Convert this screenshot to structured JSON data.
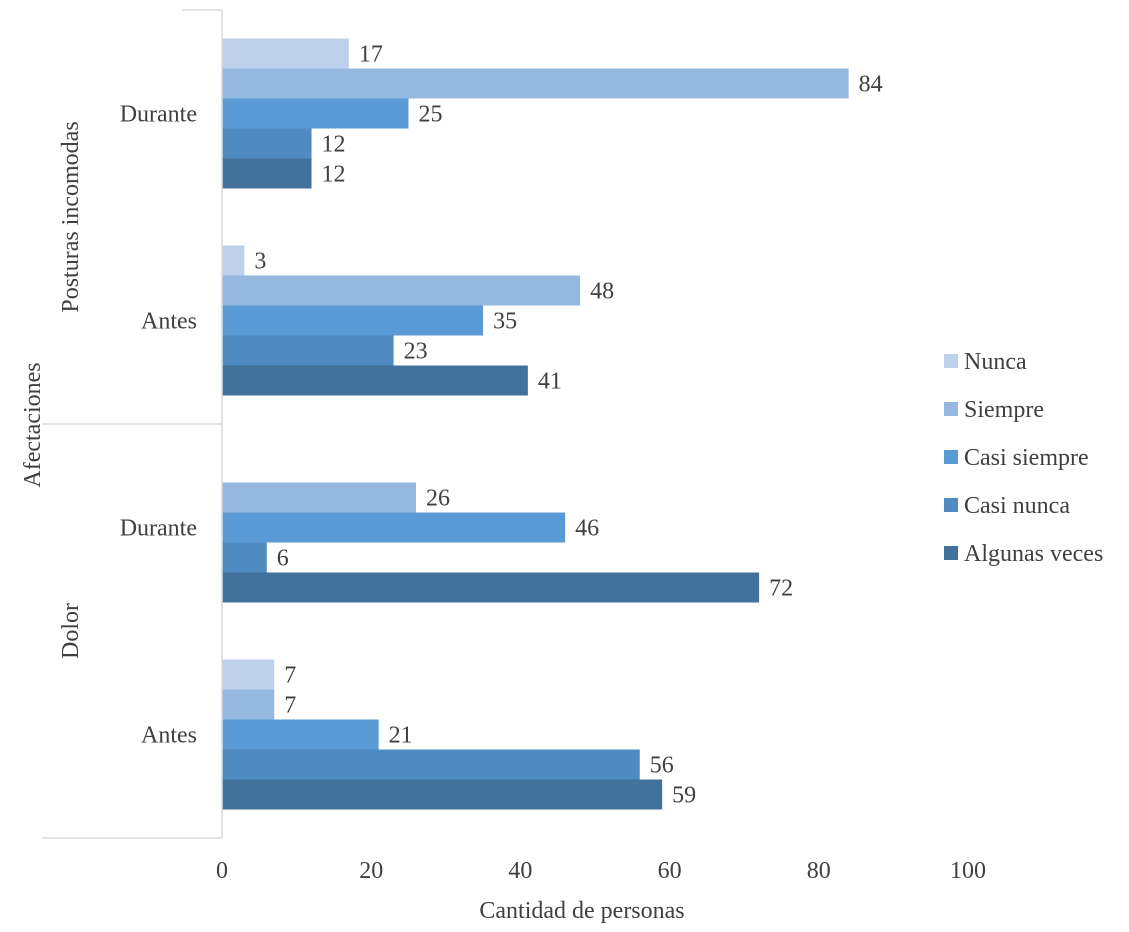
{
  "chart_data": {
    "type": "bar",
    "orientation": "horizontal",
    "xlabel": "Cantidad de personas",
    "ylabel": "Afectaciones",
    "xlim": [
      0,
      100
    ],
    "xticks": [
      0,
      20,
      40,
      60,
      80,
      100
    ],
    "grid": false,
    "legend_position": "right",
    "groups": [
      {
        "name": "Posturas incomodas",
        "categories": [
          {
            "name": "Durante",
            "bars": [
              {
                "series": "Nunca",
                "value": 17
              },
              {
                "series": "Siempre",
                "value": 84
              },
              {
                "series": "Casi siempre",
                "value": 25
              },
              {
                "series": "Casi nunca",
                "value": 12
              },
              {
                "series": "Algunas veces",
                "value": 12
              }
            ]
          },
          {
            "name": "Antes",
            "bars": [
              {
                "series": "Nunca",
                "value": 3
              },
              {
                "series": "Siempre",
                "value": 48
              },
              {
                "series": "Casi siempre",
                "value": 35
              },
              {
                "series": "Casi nunca",
                "value": 23
              },
              {
                "series": "Algunas veces",
                "value": 41
              }
            ]
          }
        ]
      },
      {
        "name": "Dolor",
        "categories": [
          {
            "name": "Durante",
            "bars": [
              {
                "series": "Siempre",
                "value": 26
              },
              {
                "series": "Casi siempre",
                "value": 46
              },
              {
                "series": "Casi nunca",
                "value": 6
              },
              {
                "series": "Algunas veces",
                "value": 72
              }
            ]
          },
          {
            "name": "Antes",
            "bars": [
              {
                "series": "Nunca",
                "value": 7
              },
              {
                "series": "Siempre",
                "value": 7
              },
              {
                "series": "Casi siempre",
                "value": 21
              },
              {
                "series": "Casi nunca",
                "value": 56
              },
              {
                "series": "Algunas veces",
                "value": 59
              }
            ]
          }
        ]
      }
    ],
    "series": [
      {
        "name": "Nunca",
        "color": "#bdd1ec"
      },
      {
        "name": "Siempre",
        "color": "#95b8e0"
      },
      {
        "name": "Casi siempre",
        "color": "#5b9bd5"
      },
      {
        "name": "Casi nunca",
        "color": "#4f8ac0"
      },
      {
        "name": "Algunas veces",
        "color": "#41719c"
      }
    ]
  }
}
